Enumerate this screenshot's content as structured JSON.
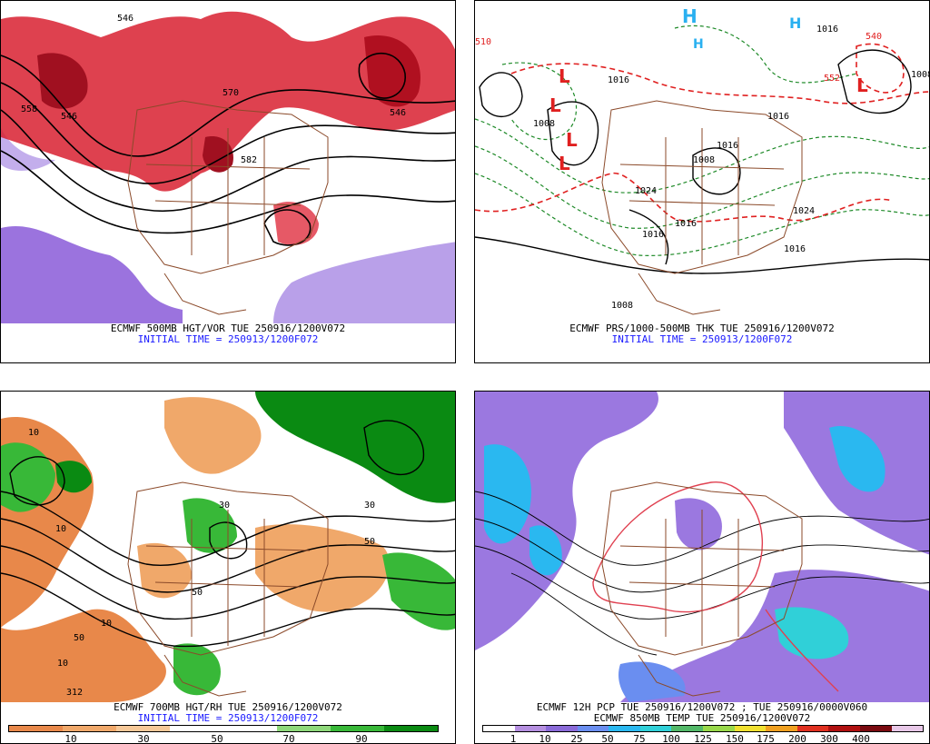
{
  "panels": {
    "tl": {
      "line1": "ECMWF 500MB HGT/VOR TUE 250916/1200V072",
      "line2": "INITIAL TIME = 250913/1200F072",
      "labels": [
        "546",
        "558",
        "546",
        "570",
        "546",
        "582"
      ]
    },
    "tr": {
      "line1": "ECMWF PRS/1000-500MB THK TUE 250916/1200V072",
      "line2": "INITIAL TIME = 250913/1200F072",
      "labels": [
        "1016",
        "1008",
        "1008",
        "1016",
        "1016",
        "1024",
        "1016",
        "1016",
        "1016",
        "1024",
        "1008",
        "1008",
        "1016",
        "540",
        "510",
        "552"
      ],
      "highs": [
        "H",
        "H",
        "H"
      ],
      "lows": [
        "L",
        "L",
        "L",
        "L",
        "L"
      ]
    },
    "bl": {
      "line1": "ECMWF 700MB HGT/RH TUE 250916/1200V072",
      "line2": "INITIAL TIME = 250913/1200F072",
      "labels": [
        "10",
        "10",
        "30",
        "50",
        "10",
        "30",
        "50",
        "50",
        "10",
        "312"
      ],
      "colorbar": {
        "colors": [
          "#e8884a",
          "#f0a86a",
          "#f6c898",
          "#ffffff",
          "#ffffff",
          "#8ed87a",
          "#38b838",
          "#0a8a12"
        ],
        "ticks": [
          "10",
          "30",
          "50",
          "70",
          "90"
        ]
      }
    },
    "br": {
      "line1": "ECMWF 12H PCP TUE 250916/1200V072 ; TUE 250916/0000V060",
      "line2": "ECMWF 850MB TEMP TUE 250916/1200V072",
      "colorbar": {
        "colors": [
          "#ffffff",
          "#b58fe0",
          "#8a6ad8",
          "#6a8ef0",
          "#2ab8f0",
          "#30d0d8",
          "#52b868",
          "#98d84a",
          "#f0e030",
          "#f0a020",
          "#e03020",
          "#b01010",
          "#7a0a10",
          "#e8c8e8"
        ],
        "ticks": [
          "1",
          "10",
          "25",
          "50",
          "75",
          "100",
          "125",
          "150",
          "175",
          "200",
          "300",
          "400"
        ]
      }
    }
  }
}
